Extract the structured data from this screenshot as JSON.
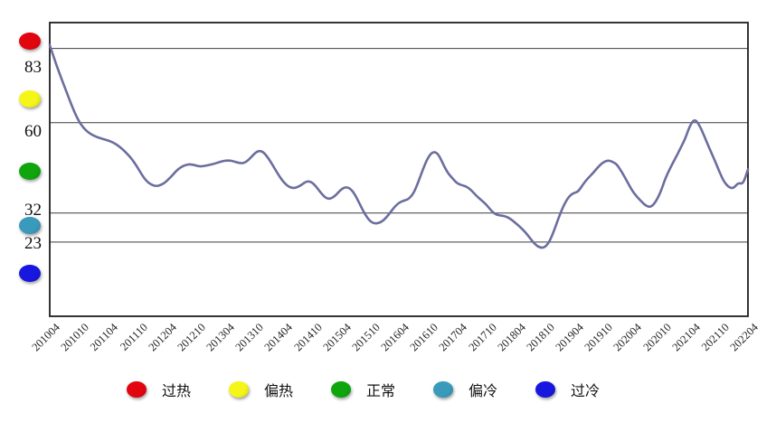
{
  "chart_data": {
    "type": "line",
    "title": "",
    "frequency": "monthly",
    "x_start_label": "201004",
    "x_end_label": "202204",
    "x_tick_labels": [
      "201004",
      "201010",
      "201104",
      "201110",
      "201204",
      "201210",
      "201304",
      "201310",
      "201404",
      "201410",
      "201504",
      "201510",
      "201604",
      "201610",
      "201704",
      "201710",
      "201804",
      "201810",
      "201904",
      "201910",
      "202004",
      "202010",
      "202104",
      "202110",
      "202204"
    ],
    "y_axis": {
      "range": [
        0,
        91
      ],
      "grid": true,
      "gridline_values": [
        83,
        60,
        32,
        23
      ],
      "gridline_labels": [
        "83",
        "60",
        "32",
        "23"
      ]
    },
    "zones": [
      {
        "label": "过热",
        "color": "#e2050f",
        "range": "above 83"
      },
      {
        "label": "偏热",
        "color": "#f5f618",
        "range": "60 to 83"
      },
      {
        "label": "正常",
        "color": "#0fa50d",
        "range": "32 to 60"
      },
      {
        "label": "偏冷",
        "color": "#3a9abc",
        "range": "23 to 32"
      },
      {
        "label": "过冷",
        "color": "#1717df",
        "range": "below 23"
      }
    ],
    "series": [
      {
        "name": "index-line",
        "color": "#6b6e9e",
        "values": [
          84.0,
          79.5,
          75.3,
          71.3,
          67.4,
          63.6,
          60.4,
          58.3,
          56.9,
          56.0,
          55.4,
          54.9,
          54.5,
          53.9,
          53.0,
          51.8,
          50.3,
          48.6,
          46.4,
          43.8,
          41.8,
          40.7,
          40.3,
          40.7,
          41.7,
          43.2,
          44.9,
          46.2,
          46.9,
          47.1,
          46.8,
          46.4,
          46.6,
          46.9,
          47.3,
          47.8,
          48.2,
          48.3,
          48.0,
          47.5,
          47.4,
          48.4,
          50.1,
          51.3,
          51.0,
          49.2,
          46.8,
          44.2,
          42.0,
          40.4,
          39.7,
          39.9,
          40.8,
          41.9,
          41.6,
          40.1,
          38.1,
          36.5,
          36.4,
          37.5,
          39.2,
          40.1,
          39.6,
          37.6,
          34.6,
          31.6,
          29.5,
          28.7,
          28.9,
          29.9,
          31.7,
          33.7,
          35.2,
          35.8,
          36.3,
          38.0,
          41.5,
          45.7,
          49.2,
          51.0,
          50.6,
          47.6,
          44.6,
          42.8,
          41.2,
          40.6,
          40.2,
          39.0,
          37.3,
          36.0,
          34.7,
          32.8,
          31.5,
          31.2,
          31.0,
          30.2,
          29.0,
          27.7,
          26.2,
          24.3,
          22.4,
          21.3,
          21.2,
          22.9,
          26.5,
          30.7,
          34.4,
          37.0,
          38.2,
          38.6,
          40.9,
          42.8,
          44.3,
          46.1,
          47.6,
          48.3,
          48.0,
          47.0,
          44.7,
          42.0,
          39.2,
          37.2,
          35.6,
          34.2,
          33.8,
          35.5,
          38.5,
          42.9,
          46.0,
          48.9,
          51.8,
          54.8,
          59.0,
          61.2,
          59.2,
          55.8,
          52.2,
          48.8,
          45.2,
          41.8,
          40.0,
          39.6,
          41.4,
          40.9,
          45.5
        ]
      }
    ],
    "legend": {
      "position": "bottom",
      "items": [
        {
          "label": "过热",
          "color": "#e2050f"
        },
        {
          "label": "偏热",
          "color": "#f5f618"
        },
        {
          "label": "正常",
          "color": "#0fa50d"
        },
        {
          "label": "偏冷",
          "color": "#3a9abc"
        },
        {
          "label": "过冷",
          "color": "#1717df"
        }
      ]
    },
    "colors": {
      "line": "#6b6e9e",
      "gridline": "#3c3c3c",
      "border": "#1e1e1e"
    }
  }
}
